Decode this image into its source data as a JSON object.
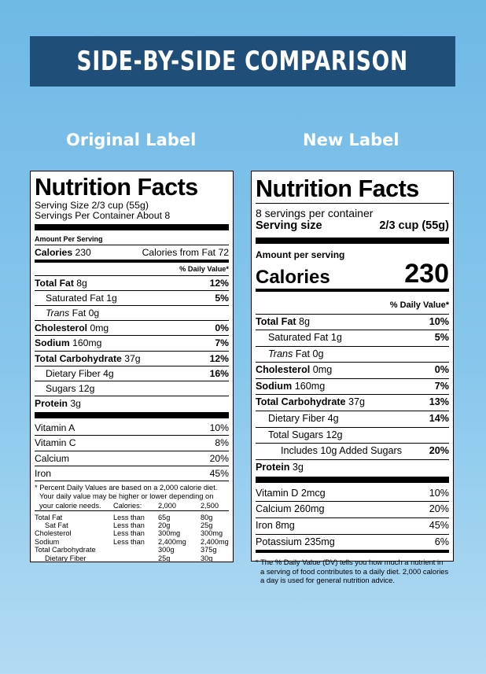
{
  "banner": {
    "title": "SIDE-BY-SIDE COMPARISON"
  },
  "columns": {
    "left_heading": "Original Label",
    "right_heading": "New Label"
  },
  "original_label": {
    "title": "Nutrition Facts",
    "serving_size": "Serving Size 2/3 cup (55g)",
    "servings_per_container": "Servings Per Container About 8",
    "amount_per_serving": "Amount Per Serving",
    "calories_label": "Calories",
    "calories_value": "230",
    "calories_from_fat": "Calories from Fat 72",
    "daily_value_header": "% Daily Value*",
    "nutrients": [
      {
        "name": "Total Fat",
        "amount": "8g",
        "dv": "12%"
      },
      {
        "name": "Saturated Fat",
        "amount": "1g",
        "dv": "5%"
      },
      {
        "name": "Trans",
        "amount": "Fat 0g",
        "dv": ""
      },
      {
        "name": "Cholesterol",
        "amount": "0mg",
        "dv": "0%"
      },
      {
        "name": "Sodium",
        "amount": "160mg",
        "dv": "7%"
      },
      {
        "name": "Total Carbohydrate",
        "amount": "37g",
        "dv": "12%"
      },
      {
        "name": "Dietary Fiber",
        "amount": "4g",
        "dv": "16%"
      },
      {
        "name": "Sugars",
        "amount": "12g",
        "dv": ""
      },
      {
        "name": "Protein",
        "amount": "3g",
        "dv": ""
      }
    ],
    "vitamins": [
      {
        "name": "Vitamin A",
        "dv": "10%"
      },
      {
        "name": "Vitamin C",
        "dv": "8%"
      },
      {
        "name": "Calcium",
        "dv": "20%"
      },
      {
        "name": "Iron",
        "dv": "45%"
      }
    ],
    "footnote_lines": [
      "* Percent Daily Values are based on a 2,000 calorie diet.",
      "Your daily value may be higher or lower depending on",
      "your calorie needs."
    ],
    "requirements": {
      "header": [
        "",
        "Calories:",
        "2,000",
        "2,500"
      ],
      "rows": [
        [
          "Total Fat",
          "Less than",
          "65g",
          "80g"
        ],
        [
          "Sat Fat",
          "Less than",
          "20g",
          "25g"
        ],
        [
          "Cholesterol",
          "Less than",
          "300mg",
          "300mg"
        ],
        [
          "Sodium",
          "Less than",
          "2,400mg",
          "2,400mg"
        ],
        [
          "Total Carbohydrate",
          "",
          "300g",
          "375g"
        ],
        [
          "Dietary Fiber",
          "",
          "25g",
          "30g"
        ]
      ]
    }
  },
  "new_label": {
    "title": "Nutrition Facts",
    "servings_per_container": "8 servings per container",
    "serving_size_label": "Serving size",
    "serving_size_value": "2/3 cup (55g)",
    "amount_per_serving": "Amount per serving",
    "calories_label": "Calories",
    "calories_value": "230",
    "daily_value_header": "% Daily Value*",
    "nutrients": [
      {
        "name": "Total Fat",
        "amount": "8g",
        "dv": "10%"
      },
      {
        "name": "Saturated Fat",
        "amount": "1g",
        "dv": "5%"
      },
      {
        "name": "Trans",
        "amount": "Fat 0g",
        "dv": ""
      },
      {
        "name": "Cholesterol",
        "amount": "0mg",
        "dv": "0%"
      },
      {
        "name": "Sodium",
        "amount": "160mg",
        "dv": "7%"
      },
      {
        "name": "Total Carbohydrate",
        "amount": "37g",
        "dv": "13%"
      },
      {
        "name": "Dietary Fiber",
        "amount": "4g",
        "dv": "14%"
      },
      {
        "name": "Total Sugars",
        "amount": "12g",
        "dv": ""
      },
      {
        "name": "Includes 10g Added Sugars",
        "amount": "",
        "dv": "20%"
      },
      {
        "name": "Protein",
        "amount": "3g",
        "dv": ""
      }
    ],
    "vitamins": [
      {
        "name": "Vitamin D 2mcg",
        "dv": "10%"
      },
      {
        "name": "Calcium 260mg",
        "dv": "20%"
      },
      {
        "name": "Iron 8mg",
        "dv": "45%"
      },
      {
        "name": "Potassium 235mg",
        "dv": "6%"
      }
    ],
    "footnote_lines": [
      "* The % Daily Value (DV) tells you how much a nutrient in",
      "a serving of food contributes to a daily diet. 2,000 calories",
      "a day is used for general nutrition advice."
    ]
  }
}
